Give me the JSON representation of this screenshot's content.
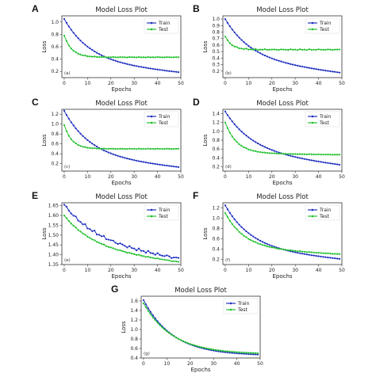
{
  "chart_data": [
    {
      "type": "line",
      "panel_label": "A",
      "sub_label": "(a)",
      "title": "Model Loss Plot",
      "xlabel": "Epochs",
      "ylabel": "Loss",
      "xlim": [
        -1,
        50
      ],
      "ylim": [
        0.1,
        1.1
      ],
      "xticks": [
        0,
        10,
        20,
        30,
        40,
        50
      ],
      "yticks": [
        0.2,
        0.4,
        0.6,
        0.8,
        1.0
      ],
      "grid": false,
      "legend": "top-right",
      "series": [
        {
          "name": "Train",
          "color": "#1f2fbf",
          "start": 1.05,
          "end": 0.18,
          "rate": 0.09,
          "shape": 0.2,
          "noise": 0.0
        },
        {
          "name": "Test",
          "color": "#22c02e",
          "start": 0.78,
          "end": 0.43,
          "rate": 0.3,
          "shape": 0.0,
          "noise": 0.004
        }
      ]
    },
    {
      "type": "line",
      "panel_label": "B",
      "sub_label": "(b)",
      "title": "Model Loss Plot",
      "xlabel": "Epochs",
      "ylabel": "Loss",
      "xlim": [
        -1,
        50
      ],
      "ylim": [
        0.1,
        1.05
      ],
      "xticks": [
        0,
        10,
        20,
        30,
        40,
        50
      ],
      "yticks": [
        0.2,
        0.3,
        0.4,
        0.5,
        0.6,
        0.7,
        0.8,
        0.9,
        1.0
      ],
      "grid": false,
      "legend": "top-right",
      "series": [
        {
          "name": "Train",
          "color": "#1f2fbf",
          "start": 1.0,
          "end": 0.17,
          "rate": 0.09,
          "shape": 0.25,
          "noise": 0.0
        },
        {
          "name": "Test",
          "color": "#22c02e",
          "start": 0.73,
          "end": 0.53,
          "rate": 0.35,
          "shape": 0.0,
          "noise": 0.008
        }
      ]
    },
    {
      "type": "line",
      "panel_label": "C",
      "sub_label": "(c)",
      "title": "Model Loss Plot",
      "xlabel": "Epochs",
      "ylabel": "Loss",
      "xlim": [
        -1,
        50
      ],
      "ylim": [
        0.05,
        1.3
      ],
      "xticks": [
        0,
        10,
        20,
        30,
        40,
        50
      ],
      "yticks": [
        0.2,
        0.4,
        0.6,
        0.8,
        1.0,
        1.2
      ],
      "grid": false,
      "legend": "top-right",
      "series": [
        {
          "name": "Train",
          "color": "#1f2fbf",
          "start": 1.27,
          "end": 0.12,
          "rate": 0.09,
          "shape": 0.2,
          "noise": 0.0
        },
        {
          "name": "Test",
          "color": "#22c02e",
          "start": 0.98,
          "end": 0.5,
          "rate": 0.3,
          "shape": 0.0,
          "noise": 0.005
        }
      ]
    },
    {
      "type": "line",
      "panel_label": "D",
      "sub_label": "(d)",
      "title": "Model Loss Plot",
      "xlabel": "Epochs",
      "ylabel": "Loss",
      "xlim": [
        -1,
        50
      ],
      "ylim": [
        0.1,
        1.5
      ],
      "xticks": [
        0,
        10,
        20,
        30,
        40,
        50
      ],
      "yticks": [
        0.2,
        0.4,
        0.6,
        0.8,
        1.0,
        1.2,
        1.4
      ],
      "grid": false,
      "legend": "top-right",
      "series": [
        {
          "name": "Train",
          "color": "#1f2fbf",
          "start": 1.45,
          "end": 0.23,
          "rate": 0.085,
          "shape": 0.25,
          "noise": 0.0
        },
        {
          "name": "Test",
          "color": "#22c02e",
          "start": 1.2,
          "end": 0.47,
          "rate": 0.2,
          "shape": 0.05,
          "noise": 0.004
        }
      ]
    },
    {
      "type": "line",
      "panel_label": "E",
      "sub_label": "(e)",
      "title": "Model Loss Plot",
      "xlabel": "Epochs",
      "ylabel": "Loss",
      "xlim": [
        -1,
        50
      ],
      "ylim": [
        1.35,
        1.665
      ],
      "xticks": [
        0,
        10,
        20,
        30,
        40,
        50
      ],
      "yticks": [
        1.35,
        1.4,
        1.45,
        1.5,
        1.55,
        1.6,
        1.65
      ],
      "grid": false,
      "legend": "top-right",
      "series": [
        {
          "name": "Train",
          "color": "#1f2fbf",
          "start": 1.655,
          "end": 1.375,
          "rate": 0.07,
          "shape": 0.3,
          "noise": 0.008
        },
        {
          "name": "Test",
          "color": "#22c02e",
          "start": 1.6,
          "end": 1.36,
          "rate": 0.08,
          "shape": 0.3,
          "noise": 0.002
        }
      ]
    },
    {
      "type": "line",
      "panel_label": "F",
      "sub_label": "(f)",
      "title": "Model Loss Plot",
      "xlabel": "Epochs",
      "ylabel": "Loss",
      "xlim": [
        -1,
        50
      ],
      "ylim": [
        0.1,
        1.3
      ],
      "xticks": [
        0,
        10,
        20,
        30,
        40,
        50
      ],
      "yticks": [
        0.2,
        0.4,
        0.6,
        0.8,
        1.0,
        1.2
      ],
      "grid": false,
      "legend": "top-right",
      "series": [
        {
          "name": "Train",
          "color": "#1f2fbf",
          "start": 1.25,
          "end": 0.2,
          "rate": 0.09,
          "shape": 0.2,
          "noise": 0.0
        },
        {
          "name": "Test",
          "color": "#22c02e",
          "start": 1.1,
          "end": 0.3,
          "rate": 0.12,
          "shape": 0.15,
          "noise": 0.005
        }
      ]
    },
    {
      "type": "line",
      "panel_label": "G",
      "sub_label": "(g)",
      "title": "Model Loss Plot",
      "xlabel": "Epochs",
      "ylabel": "Loss",
      "xlim": [
        -1,
        50
      ],
      "ylim": [
        0.4,
        1.7
      ],
      "xticks": [
        0,
        10,
        20,
        30,
        40,
        50
      ],
      "yticks": [
        0.4,
        0.6,
        0.8,
        1.0,
        1.2,
        1.4,
        1.6
      ],
      "grid": false,
      "legend": "top-right",
      "series": [
        {
          "name": "Train",
          "color": "#1f2fbf",
          "start": 1.62,
          "end": 0.45,
          "rate": 0.08,
          "shape": 0.0,
          "noise": 0.0
        },
        {
          "name": "Test",
          "color": "#22c02e",
          "start": 1.55,
          "end": 0.48,
          "rate": 0.08,
          "shape": 0.0,
          "noise": 0.0
        }
      ]
    }
  ]
}
